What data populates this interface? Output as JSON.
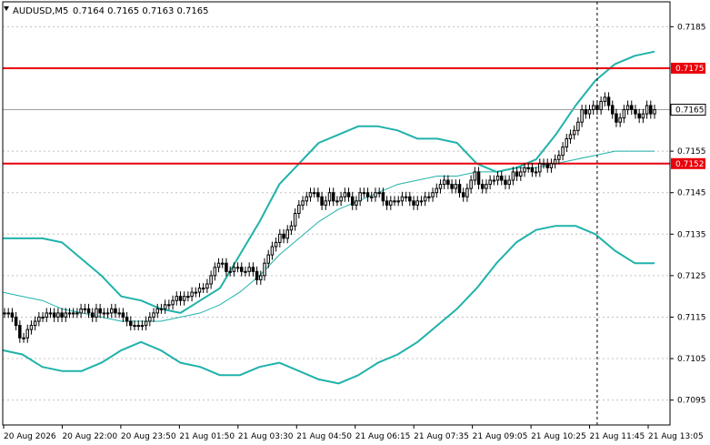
{
  "header": {
    "symbol": "AUDUSD,M5",
    "ohlc": "0.7164 0.7165 0.7163 0.7165"
  },
  "colors": {
    "candle": "#000000",
    "band": "#20b2aa",
    "level": "#e8000b",
    "current_price_label_bg": "#ffffff",
    "level_label_bg": "#e8000b",
    "grid": "#c0c0c0"
  },
  "icons": {
    "header_arrow": "triangle-down-icon"
  },
  "chart_data": {
    "type": "candlestick",
    "title": "AUDUSD,M5",
    "ylim": [
      0.7089,
      0.7191
    ],
    "y_ticks": [
      "0.7185",
      "0.7175",
      "0.7165",
      "0.7155",
      "0.7152",
      "0.7145",
      "0.7135",
      "0.7125",
      "0.7115",
      "0.7105",
      "0.7095"
    ],
    "x_ticks": [
      "20 Aug 2026",
      "20 Aug 22:00",
      "20 Aug 23:50",
      "21 Aug 01:50",
      "21 Aug 03:30",
      "21 Aug 04:50",
      "21 Aug 06:15",
      "21 Aug 07:35",
      "21 Aug 09:05",
      "21 Aug 10:25",
      "21 Aug 11:45",
      "21 Aug 13:05"
    ],
    "grid": "horizontal dashed",
    "indicator": "Bollinger Bands",
    "horizontal_levels": [
      {
        "value": 0.7175,
        "label": "0.7175"
      },
      {
        "value": 0.7152,
        "label": "0.7152"
      }
    ],
    "current_price": {
      "value": 0.7165,
      "label": "0.7165"
    },
    "vertical_marker_bar": 31,
    "closes": [
      0.7116,
      0.7116,
      0.7115,
      0.7113,
      0.711,
      0.711,
      0.7112,
      0.7113,
      0.7114,
      0.7115,
      0.7115,
      0.7116,
      0.7116,
      0.7115,
      0.7116,
      0.7115,
      0.7116,
      0.7116,
      0.7116,
      0.7116,
      0.7117,
      0.7117,
      0.7116,
      0.7115,
      0.7117,
      0.7116,
      0.7116,
      0.7116,
      0.7117,
      0.7116,
      0.7116,
      0.7115,
      0.7114,
      0.7113,
      0.7113,
      0.7113,
      0.7113,
      0.7114,
      0.7115,
      0.7116,
      0.7117,
      0.7117,
      0.7118,
      0.7118,
      0.7119,
      0.712,
      0.7119,
      0.712,
      0.712,
      0.7121,
      0.7121,
      0.7122,
      0.7122,
      0.7123,
      0.7125,
      0.7127,
      0.7128,
      0.7128,
      0.7126,
      0.7126,
      0.7127,
      0.7127,
      0.7126,
      0.7126,
      0.7127,
      0.7126,
      0.7124,
      0.7125,
      0.7128,
      0.713,
      0.7132,
      0.7133,
      0.7135,
      0.7134,
      0.7136,
      0.7137,
      0.714,
      0.7142,
      0.7143,
      0.7144,
      0.7145,
      0.7145,
      0.7144,
      0.7142,
      0.7143,
      0.7145,
      0.7143,
      0.7143,
      0.7144,
      0.7145,
      0.7144,
      0.7142,
      0.7143,
      0.7145,
      0.7145,
      0.7144,
      0.7144,
      0.7145,
      0.7145,
      0.7143,
      0.7142,
      0.7143,
      0.7143,
      0.7143,
      0.7144,
      0.7144,
      0.7143,
      0.7142,
      0.7143,
      0.7143,
      0.7144,
      0.7144,
      0.7145,
      0.7146,
      0.7147,
      0.7148,
      0.7147,
      0.7146,
      0.7147,
      0.7145,
      0.7144,
      0.7146,
      0.7148,
      0.715,
      0.7147,
      0.7146,
      0.7147,
      0.7148,
      0.7148,
      0.7149,
      0.7148,
      0.7147,
      0.7148,
      0.715,
      0.7149,
      0.715,
      0.7151,
      0.7151,
      0.715,
      0.715,
      0.7152,
      0.7152,
      0.7151,
      0.7152,
      0.7153,
      0.7154,
      0.7156,
      0.7158,
      0.7159,
      0.716,
      0.7162,
      0.7165,
      0.7164,
      0.7165,
      0.7166,
      0.7165,
      0.7167,
      0.7168,
      0.7166,
      0.7164,
      0.7162,
      0.7163,
      0.7165,
      0.7166,
      0.7165,
      0.7164,
      0.7163,
      0.7164,
      0.7166,
      0.7164,
      0.7165
    ],
    "bands": {
      "upper": [
        0.7134,
        0.7134,
        0.7134,
        0.7133,
        0.7129,
        0.7125,
        0.712,
        0.7119,
        0.7117,
        0.7116,
        0.7119,
        0.7122,
        0.713,
        0.7138,
        0.7147,
        0.7152,
        0.7157,
        0.7159,
        0.7161,
        0.7161,
        0.716,
        0.7158,
        0.7158,
        0.7157,
        0.7152,
        0.715,
        0.7151,
        0.7153,
        0.7159,
        0.7166,
        0.7172,
        0.7176,
        0.7178,
        0.7179
      ],
      "middle": [
        0.7121,
        0.712,
        0.7119,
        0.7117,
        0.7116,
        0.7115,
        0.7114,
        0.7114,
        0.7114,
        0.7115,
        0.7116,
        0.7118,
        0.7121,
        0.7125,
        0.713,
        0.7134,
        0.7138,
        0.7141,
        0.7143,
        0.7145,
        0.7147,
        0.7148,
        0.7149,
        0.7149,
        0.715,
        0.715,
        0.7151,
        0.7151,
        0.7152,
        0.7153,
        0.7154,
        0.7155,
        0.7155,
        0.7155
      ],
      "lower": [
        0.7107,
        0.7106,
        0.7103,
        0.7102,
        0.7102,
        0.7104,
        0.7107,
        0.7109,
        0.7107,
        0.7104,
        0.7103,
        0.7101,
        0.7101,
        0.7103,
        0.7104,
        0.7102,
        0.71,
        0.7099,
        0.7101,
        0.7104,
        0.7106,
        0.7109,
        0.7113,
        0.7117,
        0.7122,
        0.7128,
        0.7133,
        0.7136,
        0.7137,
        0.7137,
        0.7135,
        0.7131,
        0.7128,
        0.7128
      ]
    }
  }
}
